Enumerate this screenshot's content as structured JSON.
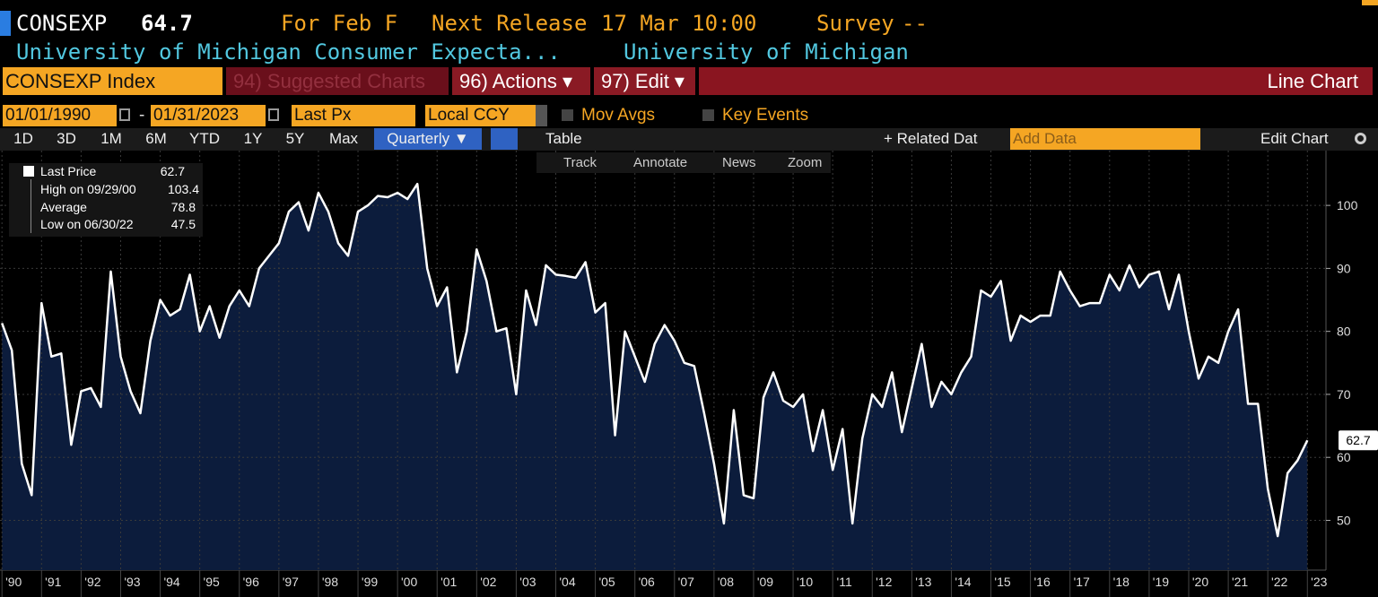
{
  "header": {
    "ticker": "CONSEXP",
    "price": 64.7,
    "period": "For Feb F",
    "next_release_label": "Next Release",
    "next_release": "17 Mar 10:00",
    "survey_label": "Survey",
    "survey": "--",
    "name": "University of Michigan Consumer Expecta...",
    "source": "University of Michigan"
  },
  "toolbar": {
    "security": "CONSEXP Index",
    "suggested": "94) Suggested Charts",
    "actions": "96) Actions ▾",
    "edit": "97) Edit ▾",
    "chart_type": "Line Chart",
    "start_date": "01/01/1990",
    "date_sep": "-",
    "end_date": "01/31/2023",
    "field": "Last Px",
    "currency": "Local CCY",
    "mov_avgs": "Mov Avgs",
    "key_events": "Key Events",
    "periods": [
      "1D",
      "3D",
      "1M",
      "6M",
      "YTD",
      "1Y",
      "5Y",
      "Max"
    ],
    "frequency": "Quarterly ▼",
    "table": "Table",
    "related_data": "+ Related Dat",
    "add_data": "Add Data",
    "edit_chart": "Edit Chart",
    "tools": [
      "Track",
      "Annotate",
      "News",
      "Zoom"
    ]
  },
  "chart_data": {
    "type": "line",
    "x": [
      1990,
      1990.25,
      1990.5,
      1990.75,
      1991,
      1991.25,
      1991.5,
      1991.75,
      1992,
      1992.25,
      1992.5,
      1992.75,
      1993,
      1993.25,
      1993.5,
      1993.75,
      1994,
      1994.25,
      1994.5,
      1994.75,
      1995,
      1995.25,
      1995.5,
      1995.75,
      1996,
      1996.25,
      1996.5,
      1996.75,
      1997,
      1997.25,
      1997.5,
      1997.75,
      1998,
      1998.25,
      1998.5,
      1998.75,
      1999,
      1999.25,
      1999.5,
      1999.75,
      2000,
      2000.25,
      2000.5,
      2000.75,
      2001,
      2001.25,
      2001.5,
      2001.75,
      2002,
      2002.25,
      2002.5,
      2002.75,
      2003,
      2003.25,
      2003.5,
      2003.75,
      2004,
      2004.25,
      2004.5,
      2004.75,
      2005,
      2005.25,
      2005.5,
      2005.75,
      2006,
      2006.25,
      2006.5,
      2006.75,
      2007,
      2007.25,
      2007.5,
      2007.75,
      2008,
      2008.25,
      2008.5,
      2008.75,
      2009,
      2009.25,
      2009.5,
      2009.75,
      2010,
      2010.25,
      2010.5,
      2010.75,
      2011,
      2011.25,
      2011.5,
      2011.75,
      2012,
      2012.25,
      2012.5,
      2012.75,
      2013,
      2013.25,
      2013.5,
      2013.75,
      2014,
      2014.25,
      2014.5,
      2014.75,
      2015,
      2015.25,
      2015.5,
      2015.75,
      2016,
      2016.25,
      2016.5,
      2016.75,
      2017,
      2017.25,
      2017.5,
      2017.75,
      2018,
      2018.25,
      2018.5,
      2018.75,
      2019,
      2019.25,
      2019.5,
      2019.75,
      2020,
      2020.25,
      2020.5,
      2020.75,
      2021,
      2021.25,
      2021.5,
      2021.75,
      2022,
      2022.25,
      2022.5,
      2022.75,
      2023
    ],
    "series": [
      {
        "name": "Last Price",
        "color": "#ffffff",
        "values": [
          81.3,
          77,
          59,
          54,
          84.5,
          76,
          76.5,
          62,
          70.5,
          71,
          68,
          89.5,
          76,
          70.5,
          67,
          78.5,
          85,
          82.5,
          83.5,
          89,
          80,
          84,
          79,
          84,
          86.5,
          84,
          90,
          92,
          94,
          99,
          100.5,
          96,
          102,
          99,
          94,
          92,
          99,
          100,
          101.5,
          101.3,
          102,
          101,
          103.4,
          90,
          84,
          87,
          73.5,
          80,
          93,
          88,
          80,
          80.5,
          70,
          86.5,
          81,
          90.5,
          89,
          88.8,
          88.5,
          91,
          83,
          84.5,
          63.5,
          80,
          76,
          72,
          78,
          81,
          78.5,
          75,
          74.5,
          67,
          59,
          49.5,
          67.5,
          54,
          53.5,
          69.5,
          73.5,
          69,
          68,
          70,
          61,
          67.5,
          58,
          64.5,
          49.5,
          63,
          70,
          68,
          73.5,
          64,
          71,
          78,
          68,
          72,
          70,
          73.5,
          76,
          86.5,
          85.5,
          88,
          78.5,
          82.5,
          81.5,
          82.5,
          82.5,
          89.5,
          86.5,
          84,
          84.5,
          84.5,
          89,
          86.5,
          90.5,
          87,
          89,
          89.5,
          83.5,
          89,
          80,
          72.5,
          76,
          75,
          80,
          83.5,
          68.5,
          68.5,
          55,
          47.5,
          57.5,
          59.5,
          62.7
        ]
      }
    ],
    "area_color": "#0c1c3c",
    "xlim": [
      1989.95,
      2023.47
    ],
    "xticks": [
      {
        "value": 1990,
        "label": "'90"
      },
      {
        "value": 1991,
        "label": "'91"
      },
      {
        "value": 1992,
        "label": "'92"
      },
      {
        "value": 1993,
        "label": "'93"
      },
      {
        "value": 1994,
        "label": "'94"
      },
      {
        "value": 1995,
        "label": "'95"
      },
      {
        "value": 1996,
        "label": "'96"
      },
      {
        "value": 1997,
        "label": "'97"
      },
      {
        "value": 1998,
        "label": "'98"
      },
      {
        "value": 1999,
        "label": "'99"
      },
      {
        "value": 2000,
        "label": "'00"
      },
      {
        "value": 2001,
        "label": "'01"
      },
      {
        "value": 2002,
        "label": "'02"
      },
      {
        "value": 2003,
        "label": "'03"
      },
      {
        "value": 2004,
        "label": "'04"
      },
      {
        "value": 2005,
        "label": "'05"
      },
      {
        "value": 2006,
        "label": "'06"
      },
      {
        "value": 2007,
        "label": "'07"
      },
      {
        "value": 2008,
        "label": "'08"
      },
      {
        "value": 2009,
        "label": "'09"
      },
      {
        "value": 2010,
        "label": "'10"
      },
      {
        "value": 2011,
        "label": "'11"
      },
      {
        "value": 2012,
        "label": "'12"
      },
      {
        "value": 2013,
        "label": "'13"
      },
      {
        "value": 2014,
        "label": "'14"
      },
      {
        "value": 2015,
        "label": "'15"
      },
      {
        "value": 2016,
        "label": "'16"
      },
      {
        "value": 2017,
        "label": "'17"
      },
      {
        "value": 2018,
        "label": "'18"
      },
      {
        "value": 2019,
        "label": "'19"
      },
      {
        "value": 2020,
        "label": "'20"
      },
      {
        "value": 2021,
        "label": "'21"
      },
      {
        "value": 2022,
        "label": "'22"
      },
      {
        "value": 2023,
        "label": "'23"
      }
    ],
    "ylim": [
      42.1,
      108.7
    ],
    "yticks": [
      50,
      60,
      70,
      80,
      90,
      100
    ],
    "grid": true,
    "stats": {
      "high_label": "High on 09/29/00",
      "high": 103.4,
      "average_label": "Average",
      "average": 78.8,
      "low_label": "Low on 06/30/22",
      "low": 47.5
    }
  }
}
